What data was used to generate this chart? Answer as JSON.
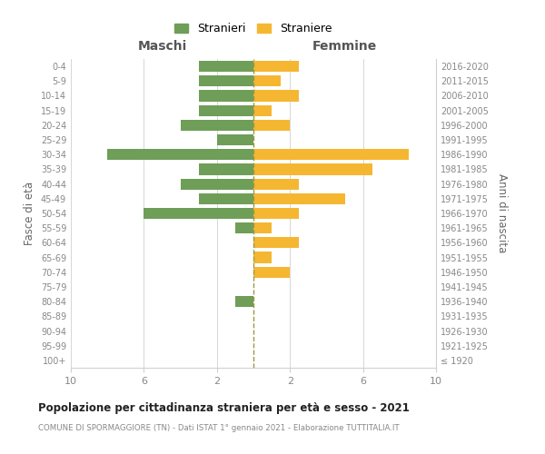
{
  "age_groups": [
    "100+",
    "95-99",
    "90-94",
    "85-89",
    "80-84",
    "75-79",
    "70-74",
    "65-69",
    "60-64",
    "55-59",
    "50-54",
    "45-49",
    "40-44",
    "35-39",
    "30-34",
    "25-29",
    "20-24",
    "15-19",
    "10-14",
    "5-9",
    "0-4"
  ],
  "birth_years": [
    "≤ 1920",
    "1921-1925",
    "1926-1930",
    "1931-1935",
    "1936-1940",
    "1941-1945",
    "1946-1950",
    "1951-1955",
    "1956-1960",
    "1961-1965",
    "1966-1970",
    "1971-1975",
    "1976-1980",
    "1981-1985",
    "1986-1990",
    "1991-1995",
    "1996-2000",
    "2001-2005",
    "2006-2010",
    "2011-2015",
    "2016-2020"
  ],
  "males": [
    0,
    0,
    0,
    0,
    1,
    0,
    0,
    0,
    0,
    1,
    6,
    3,
    4,
    3,
    8,
    2,
    4,
    3,
    3,
    3,
    3
  ],
  "females": [
    0,
    0,
    0,
    0,
    0,
    0,
    2,
    1,
    2.5,
    1,
    2.5,
    5,
    2.5,
    6.5,
    8.5,
    0,
    2,
    1,
    2.5,
    1.5,
    2.5
  ],
  "color_male": "#6e9e58",
  "color_female": "#f5b731",
  "title": "Popolazione per cittadinanza straniera per età e sesso - 2021",
  "subtitle": "COMUNE DI SPORMAGGIORE (TN) - Dati ISTAT 1° gennaio 2021 - Elaborazione TUTTITALIA.IT",
  "ylabel_left": "Fasce di età",
  "ylabel_right": "Anni di nascita",
  "xlabel_left": "Maschi",
  "xlabel_right": "Femmine",
  "legend_male": "Stranieri",
  "legend_female": "Straniere",
  "xlim": 10,
  "background_color": "#ffffff",
  "grid_color": "#d0d0d0",
  "centerline_color": "#999944"
}
